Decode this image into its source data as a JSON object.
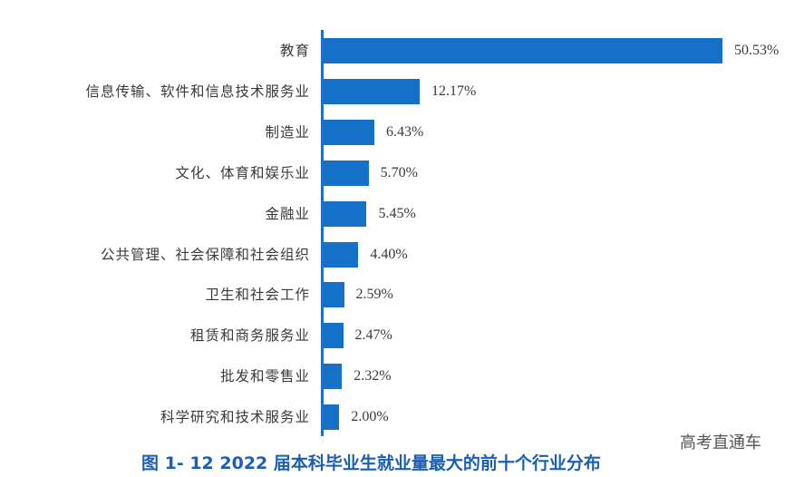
{
  "chart_data": {
    "type": "bar",
    "orientation": "horizontal",
    "title": "图 1- 12  2022 届本科毕业生就业量最大的前十个行业分布",
    "xlabel": "",
    "ylabel": "",
    "categories": [
      "教育",
      "信息传输、软件和信息技术服务业",
      "制造业",
      "文化、体育和娱乐业",
      "金融业",
      "公共管理、社会保障和社会组织",
      "卫生和社会工作",
      "租赁和商务服务业",
      "批发和零售业",
      "科学研究和技术服务业"
    ],
    "values": [
      50.53,
      12.17,
      6.43,
      5.7,
      5.45,
      4.4,
      2.59,
      2.47,
      2.32,
      2.0
    ],
    "value_labels": [
      "50.53%",
      "12.17%",
      "6.43%",
      "5.70%",
      "5.45%",
      "4.40%",
      "2.59%",
      "2.47%",
      "2.32%",
      "2.00%"
    ],
    "unit": "%",
    "grid": false,
    "legend": null,
    "bar_color": "#1570c8",
    "xlim": [
      0,
      55
    ]
  },
  "caption": "图 1- 12  2022 届本科毕业生就业量最大的前十个行业分布",
  "watermark": "高考直通车",
  "colors": {
    "bar": "#1570c8",
    "caption": "#1a5fb4",
    "text": "#3a3a3a"
  }
}
